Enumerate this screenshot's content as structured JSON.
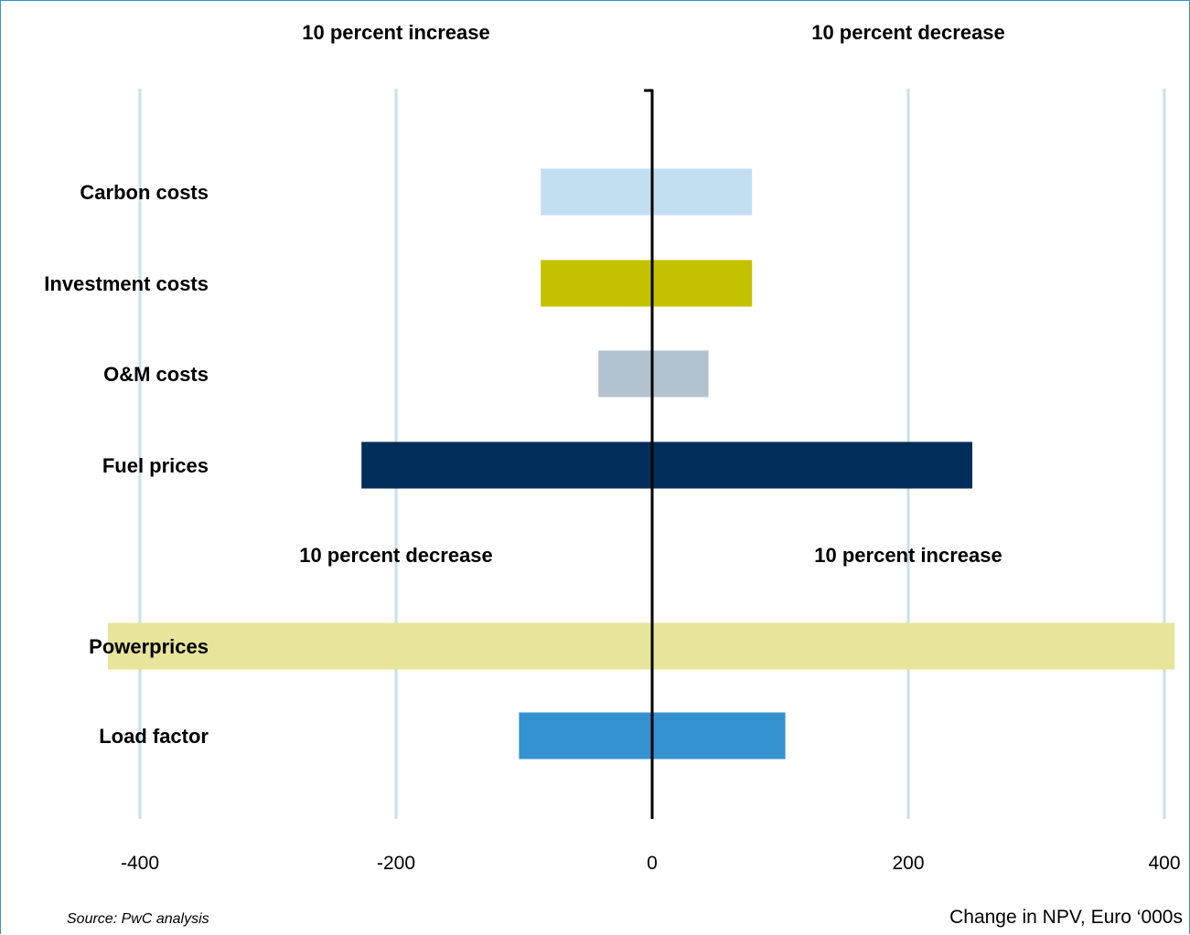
{
  "chart_data": {
    "type": "bar",
    "orientation": "horizontal",
    "xlim": [
      -400,
      400
    ],
    "x_ticks": [
      -400,
      -200,
      0,
      200,
      400
    ],
    "grid": true,
    "xlabel": "Change in NPV, Euro ‘000s",
    "source": "Source: PwC analysis",
    "section_labels": [
      {
        "left": "10 percent increase",
        "right": "10 percent decrease"
      },
      {
        "left": "10 percent decrease",
        "right": "10 percent increase"
      }
    ],
    "categories": [
      "Carbon costs",
      "Investment costs",
      "O&M costs",
      "Fuel prices",
      "Powerprices",
      "Load factor"
    ],
    "series": [
      {
        "low": [
          -87,
          -87,
          -42,
          -227,
          -425,
          -104
        ],
        "high": [
          78,
          78,
          44,
          250,
          408,
          104
        ]
      }
    ],
    "bar_colors": [
      "#c2dff1",
      "#c4c200",
      "#b3c2cf",
      "#012e5b",
      "#e6e59b",
      "#3592d0"
    ]
  },
  "colors": {
    "gridline": "#c8dfee",
    "axis": "#000000",
    "frame": "#3a8fc9"
  }
}
